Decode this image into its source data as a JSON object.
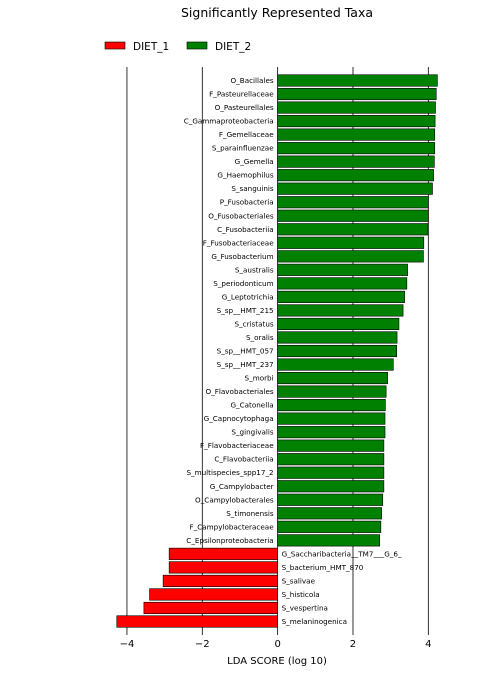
{
  "chart_data": {
    "type": "bar",
    "orientation": "horizontal",
    "title": "Significantly Represented Taxa",
    "xlabel": "LDA SCORE (log 10)",
    "ylabel": "",
    "xlim": [
      -4.45,
      5.0
    ],
    "xticks": [
      -4,
      -2,
      0,
      2,
      4
    ],
    "xtick_labels": [
      "−4",
      "−2",
      "0",
      "2",
      "4"
    ],
    "grid": "vertical",
    "legend": {
      "placement": "top-left",
      "entries": [
        {
          "name": "DIET_1",
          "color": "#ff0000"
        },
        {
          "name": "DIET_2",
          "color": "#008000"
        }
      ]
    },
    "series": [
      {
        "name": "DIET_2",
        "color": "#008000",
        "categories": [
          "O_Bacillales",
          "F_Pasteurellaceae",
          "O_Pasteurellales",
          "C_Gammaproteobacteria",
          "F_Gemellaceae",
          "S_parainfluenzae",
          "G_Gemella",
          "G_Haemophilus",
          "S_sanguinis",
          "P_Fusobacteria",
          "O_Fusobacteriales",
          "C_Fusobacteriia",
          "F_Fusobacteriaceae",
          "G_Fusobacterium",
          "S_australis",
          "S_periodonticum",
          "G_Leptotrichia",
          "S_sp__HMT_215",
          "S_cristatus",
          "S_oralis",
          "S_sp__HMT_057",
          "S_sp__HMT_237",
          "S_morbi",
          "O_Flavobacteriales",
          "G_Catonella",
          "G_Capnocytophaga",
          "S_gingivalis",
          "F_Flavobacteriaceae",
          "C_Flavobacteriia",
          "S_multispecies_spp17_2",
          "G_Campylobacter",
          "O_Campylobacterales",
          "S_timonensis",
          "F_Campylobacteraceae",
          "C_Epsilonproteobacteria"
        ],
        "values": [
          4.24,
          4.21,
          4.19,
          4.18,
          4.17,
          4.17,
          4.16,
          4.14,
          4.11,
          4.0,
          4.0,
          3.99,
          3.88,
          3.87,
          3.45,
          3.43,
          3.37,
          3.33,
          3.22,
          3.17,
          3.16,
          3.07,
          2.92,
          2.88,
          2.86,
          2.85,
          2.85,
          2.82,
          2.82,
          2.82,
          2.82,
          2.79,
          2.76,
          2.74,
          2.71
        ]
      },
      {
        "name": "DIET_1",
        "color": "#ff0000",
        "categories": [
          "G_Saccharibacteria__TM7___G_6_",
          "S_bacterium_HMT_870",
          "S_salivae",
          "S_histicola",
          "S_vespertina",
          "S_melaninogenica"
        ],
        "values": [
          -2.88,
          -2.88,
          -3.04,
          -3.4,
          -3.55,
          -4.27
        ]
      }
    ]
  }
}
